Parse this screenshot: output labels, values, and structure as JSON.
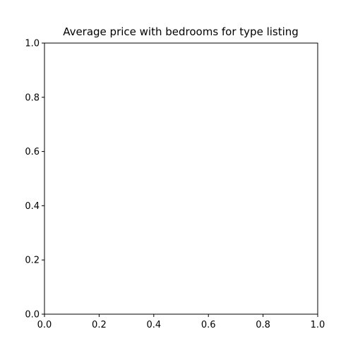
{
  "chart_data": {
    "type": "scatter",
    "title": "Average price with bedrooms for type listing",
    "xlabel": "",
    "ylabel": "",
    "xlim": [
      0.0,
      1.0
    ],
    "ylim": [
      0.0,
      1.0
    ],
    "xticks": [
      "0.0",
      "0.2",
      "0.4",
      "0.6",
      "0.8",
      "1.0"
    ],
    "yticks": [
      "0.0",
      "0.2",
      "0.4",
      "0.6",
      "0.8",
      "1.0"
    ],
    "series": [],
    "grid": false,
    "legend": "none"
  }
}
